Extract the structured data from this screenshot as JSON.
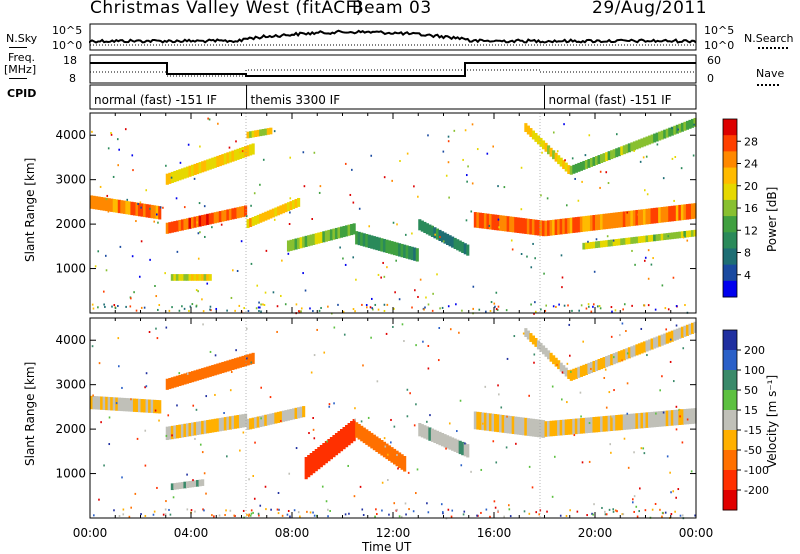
{
  "header": {
    "station": "Christmas Valley West (fitACF)",
    "beam": "Beam 03",
    "date": "29/Aug/2011"
  },
  "summary_panel": {
    "nsky_label": "N.Sky",
    "nsearch_label": "N.Search",
    "noise_ticks_left": [
      "10^5",
      "10^0"
    ],
    "noise_ticks_right": [
      "10^5",
      "10^0"
    ],
    "freq_label_1": "Freq.",
    "freq_label_2": "[MHz]",
    "freq_ticks": [
      "18",
      "8"
    ],
    "nave_label": "Nave",
    "nave_ticks": [
      "60",
      "0"
    ],
    "cpid_label": "CPID",
    "cpid_segments": [
      {
        "start_hour": 0,
        "end_hour": 6.2,
        "text": "normal (fast) -151 IF"
      },
      {
        "start_hour": 6.2,
        "end_hour": 18,
        "text": "themis 3300 IF"
      },
      {
        "start_hour": 18,
        "end_hour": 24,
        "text": "normal (fast) -151 IF"
      }
    ]
  },
  "x_axis": {
    "label": "Time UT",
    "ticks": [
      "00:00",
      "04:00",
      "08:00",
      "12:00",
      "16:00",
      "20:00",
      "00:00"
    ]
  },
  "chart_data": [
    {
      "type": "heatmap",
      "title": "Power",
      "ylabel": "Slant Range [km]",
      "y_ticks": [
        "1000",
        "2000",
        "3000",
        "4000"
      ],
      "ylim": [
        0,
        4500
      ],
      "xlim_hours": [
        0,
        24
      ],
      "colorbar": {
        "label": "Power [dB]",
        "ticks": [
          "28",
          "24",
          "20",
          "16",
          "12",
          "8",
          "4"
        ],
        "colors": [
          "#dd0000",
          "#ff4000",
          "#ff8800",
          "#ffbb00",
          "#e6d800",
          "#88c030",
          "#40a040",
          "#2a8a5a",
          "#1e6e74",
          "#1a4aa0",
          "#0000ee"
        ]
      },
      "echo_bands": [
        {
          "start_hour": 0.0,
          "end_hour": 2.8,
          "range_start_km": 2500,
          "range_end_km": 2250,
          "thickness_km": 300,
          "power_dB": 24
        },
        {
          "start_hour": 3.0,
          "end_hour": 6.2,
          "range_start_km": 1900,
          "range_end_km": 2300,
          "thickness_km": 250,
          "power_dB": 26
        },
        {
          "start_hour": 3.0,
          "end_hour": 6.5,
          "range_start_km": 3000,
          "range_end_km": 3700,
          "thickness_km": 250,
          "power_dB": 20
        },
        {
          "start_hour": 6.2,
          "end_hour": 7.2,
          "range_start_km": 4000,
          "range_end_km": 4100,
          "thickness_km": 150,
          "power_dB": 18
        },
        {
          "start_hour": 6.2,
          "end_hour": 8.3,
          "range_start_km": 2000,
          "range_end_km": 2500,
          "thickness_km": 200,
          "power_dB": 20
        },
        {
          "start_hour": 7.8,
          "end_hour": 10.5,
          "range_start_km": 1500,
          "range_end_km": 1900,
          "thickness_km": 250,
          "power_dB": 14
        },
        {
          "start_hour": 10.5,
          "end_hour": 13.0,
          "range_start_km": 1700,
          "range_end_km": 1300,
          "thickness_km": 300,
          "power_dB": 10
        },
        {
          "start_hour": 13.0,
          "end_hour": 15.0,
          "range_start_km": 2000,
          "range_end_km": 1400,
          "thickness_km": 250,
          "power_dB": 8
        },
        {
          "start_hour": 3.2,
          "end_hour": 4.8,
          "range_start_km": 800,
          "range_end_km": 800,
          "thickness_km": 150,
          "power_dB": 18
        },
        {
          "start_hour": 15.2,
          "end_hour": 18.0,
          "range_start_km": 2100,
          "range_end_km": 1900,
          "thickness_km": 350,
          "power_dB": 26
        },
        {
          "start_hour": 18.0,
          "end_hour": 24.0,
          "range_start_km": 1900,
          "range_end_km": 2300,
          "thickness_km": 350,
          "power_dB": 24
        },
        {
          "start_hour": 19.5,
          "end_hour": 24.0,
          "range_start_km": 1500,
          "range_end_km": 1800,
          "thickness_km": 150,
          "power_dB": 16
        },
        {
          "start_hour": 17.2,
          "end_hour": 19.0,
          "range_start_km": 4200,
          "range_end_km": 3200,
          "thickness_km": 200,
          "power_dB": 18
        },
        {
          "start_hour": 19.0,
          "end_hour": 24.0,
          "range_start_km": 3200,
          "range_end_km": 4300,
          "thickness_km": 200,
          "power_dB": 14
        }
      ]
    },
    {
      "type": "heatmap",
      "title": "Velocity",
      "ylabel": "Slant Range [km]",
      "y_ticks": [
        "1000",
        "2000",
        "3000",
        "4000"
      ],
      "ylim": [
        0,
        4500
      ],
      "xlim_hours": [
        0,
        24
      ],
      "colorbar": {
        "label": "Velocity [m s⁻¹]",
        "ticks": [
          "200",
          "100",
          "50",
          "15",
          "-15",
          "-50",
          "-100",
          "-200"
        ],
        "colors": [
          "#2030a0",
          "#2a60c8",
          "#3a8a6a",
          "#5cc040",
          "#c0c0b8",
          "#ffb000",
          "#ff7000",
          "#ff3000",
          "#e00000"
        ]
      },
      "echo_bands": [
        {
          "start_hour": 0.0,
          "end_hour": 2.8,
          "range_start_km": 2600,
          "range_end_km": 2500,
          "thickness_km": 300,
          "velocity_ms": 0
        },
        {
          "start_hour": 3.0,
          "end_hour": 6.2,
          "range_start_km": 1900,
          "range_end_km": 2200,
          "thickness_km": 300,
          "velocity_ms": 0
        },
        {
          "start_hour": 3.0,
          "end_hour": 6.5,
          "range_start_km": 3000,
          "range_end_km": 3600,
          "thickness_km": 250,
          "velocity_ms": -40
        },
        {
          "start_hour": 6.2,
          "end_hour": 8.5,
          "range_start_km": 2100,
          "range_end_km": 2400,
          "thickness_km": 250,
          "velocity_ms": 0
        },
        {
          "start_hour": 8.5,
          "end_hour": 10.5,
          "range_start_km": 1100,
          "range_end_km": 2000,
          "thickness_km": 500,
          "velocity_ms": -120
        },
        {
          "start_hour": 10.5,
          "end_hour": 12.5,
          "range_start_km": 2000,
          "range_end_km": 1200,
          "thickness_km": 350,
          "velocity_ms": -40
        },
        {
          "start_hour": 13.0,
          "end_hour": 15.0,
          "range_start_km": 2000,
          "range_end_km": 1500,
          "thickness_km": 300,
          "velocity_ms": 30
        },
        {
          "start_hour": 15.2,
          "end_hour": 18.0,
          "range_start_km": 2200,
          "range_end_km": 2000,
          "thickness_km": 400,
          "velocity_ms": 0
        },
        {
          "start_hour": 18.0,
          "end_hour": 24.0,
          "range_start_km": 2000,
          "range_end_km": 2300,
          "thickness_km": 350,
          "velocity_ms": 0
        },
        {
          "start_hour": 17.2,
          "end_hour": 19.0,
          "range_start_km": 4200,
          "range_end_km": 3200,
          "thickness_km": 200,
          "velocity_ms": 0
        },
        {
          "start_hour": 19.0,
          "end_hour": 24.0,
          "range_start_km": 3200,
          "range_end_km": 4300,
          "thickness_km": 250,
          "velocity_ms": 0
        },
        {
          "start_hour": 3.2,
          "end_hour": 4.5,
          "range_start_km": 700,
          "range_end_km": 800,
          "thickness_km": 150,
          "velocity_ms": 30
        }
      ]
    }
  ]
}
